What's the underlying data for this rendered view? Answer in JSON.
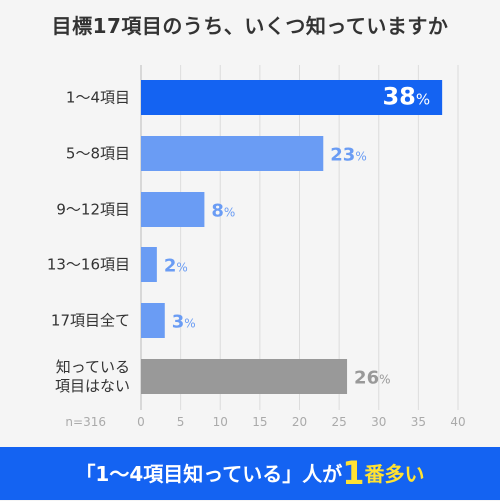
{
  "title": "目標17項目のうち、いくつ知っていますか",
  "footer": {
    "pre": "「1〜4項目知っている」人が",
    "big": "1",
    "post": "番多い"
  },
  "chart_data": {
    "type": "bar",
    "orientation": "horizontal",
    "title": "目標17項目のうち、いくつ知っていますか",
    "categories": [
      "1〜4項目",
      "5〜8項目",
      "9〜12項目",
      "13〜16項目",
      "17項目全て",
      "知っている\n項目はない"
    ],
    "values": [
      38,
      23,
      8,
      2,
      3,
      26
    ],
    "unit": "%",
    "note": "n=316",
    "xlim": [
      0,
      40
    ],
    "xticks": [
      0,
      5,
      10,
      15,
      20,
      25,
      30,
      35,
      40
    ],
    "grid": true,
    "colors": [
      "#1463f2",
      "#6a9cf4",
      "#6a9cf4",
      "#6a9cf4",
      "#6a9cf4",
      "#999999"
    ],
    "label_colors": [
      "#ffffff",
      "#6a9cf4",
      "#6a9cf4",
      "#6a9cf4",
      "#6a9cf4",
      "#999999"
    ]
  }
}
